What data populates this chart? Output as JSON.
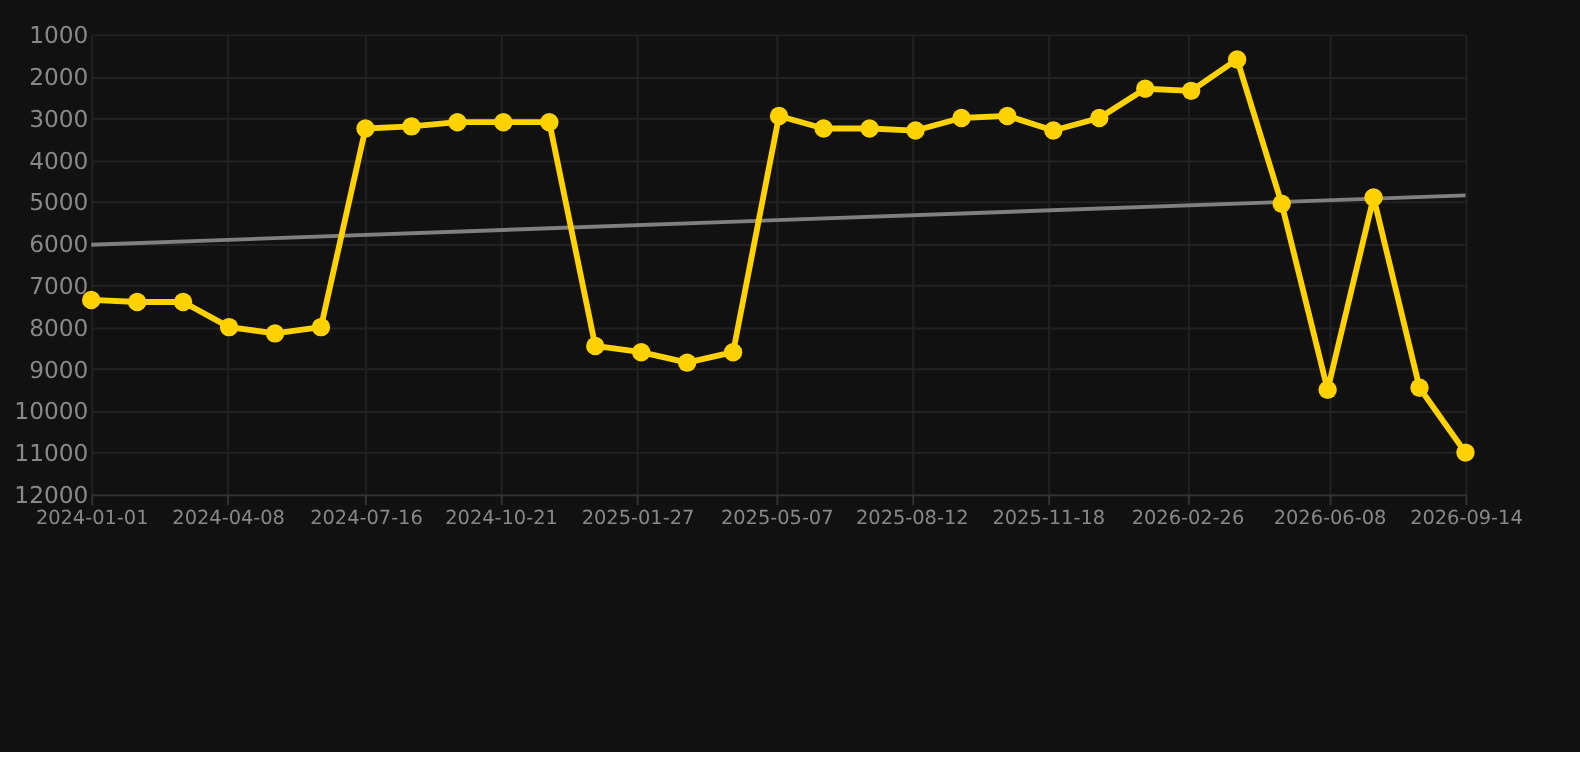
{
  "chart_data": {
    "type": "line",
    "x": [
      "2024-01-01",
      "2024-02-03",
      "2024-03-07",
      "2024-04-09",
      "2024-05-12",
      "2024-06-14",
      "2024-07-16",
      "2024-08-18",
      "2024-09-20",
      "2024-10-23",
      "2024-11-25",
      "2024-12-28",
      "2025-01-30",
      "2025-03-04",
      "2025-04-06",
      "2025-05-09",
      "2025-06-10",
      "2025-07-13",
      "2025-08-15",
      "2025-09-17",
      "2025-10-20",
      "2025-11-22",
      "2025-12-25",
      "2026-01-27",
      "2026-03-01",
      "2026-04-03",
      "2026-05-05",
      "2026-06-07",
      "2026-07-10",
      "2026-08-12",
      "2026-09-14"
    ],
    "series": [
      {
        "color": "#ffd200",
        "marker": "circle",
        "values": [
          7350,
          7400,
          7400,
          8000,
          8150,
          8000,
          3250,
          3200,
          3100,
          3100,
          3100,
          8450,
          8600,
          8850,
          8600,
          2950,
          3250,
          3250,
          3300,
          3000,
          2950,
          3300,
          3000,
          2300,
          2350,
          1600,
          5050,
          9500,
          4900,
          9450,
          11000
        ]
      },
      {
        "type": "line",
        "color": "#808080",
        "marker": "none",
        "x": [
          "2024-01-01",
          "2026-09-14"
        ],
        "values": [
          6030,
          4850
        ]
      }
    ],
    "xlim": [
      "2024-01-01",
      "2026-09-14"
    ],
    "xticks": [
      "2024-01-01",
      "2024-04-08",
      "2024-07-16",
      "2024-10-21",
      "2025-01-27",
      "2025-05-07",
      "2025-08-12",
      "2025-11-18",
      "2026-02-26",
      "2026-06-08",
      "2026-09-14"
    ],
    "ylim": [
      12000,
      1000
    ],
    "yticks": [
      1000,
      2000,
      3000,
      4000,
      5000,
      6000,
      7000,
      8000,
      9000,
      10000,
      11000,
      12000
    ],
    "grid": true
  }
}
